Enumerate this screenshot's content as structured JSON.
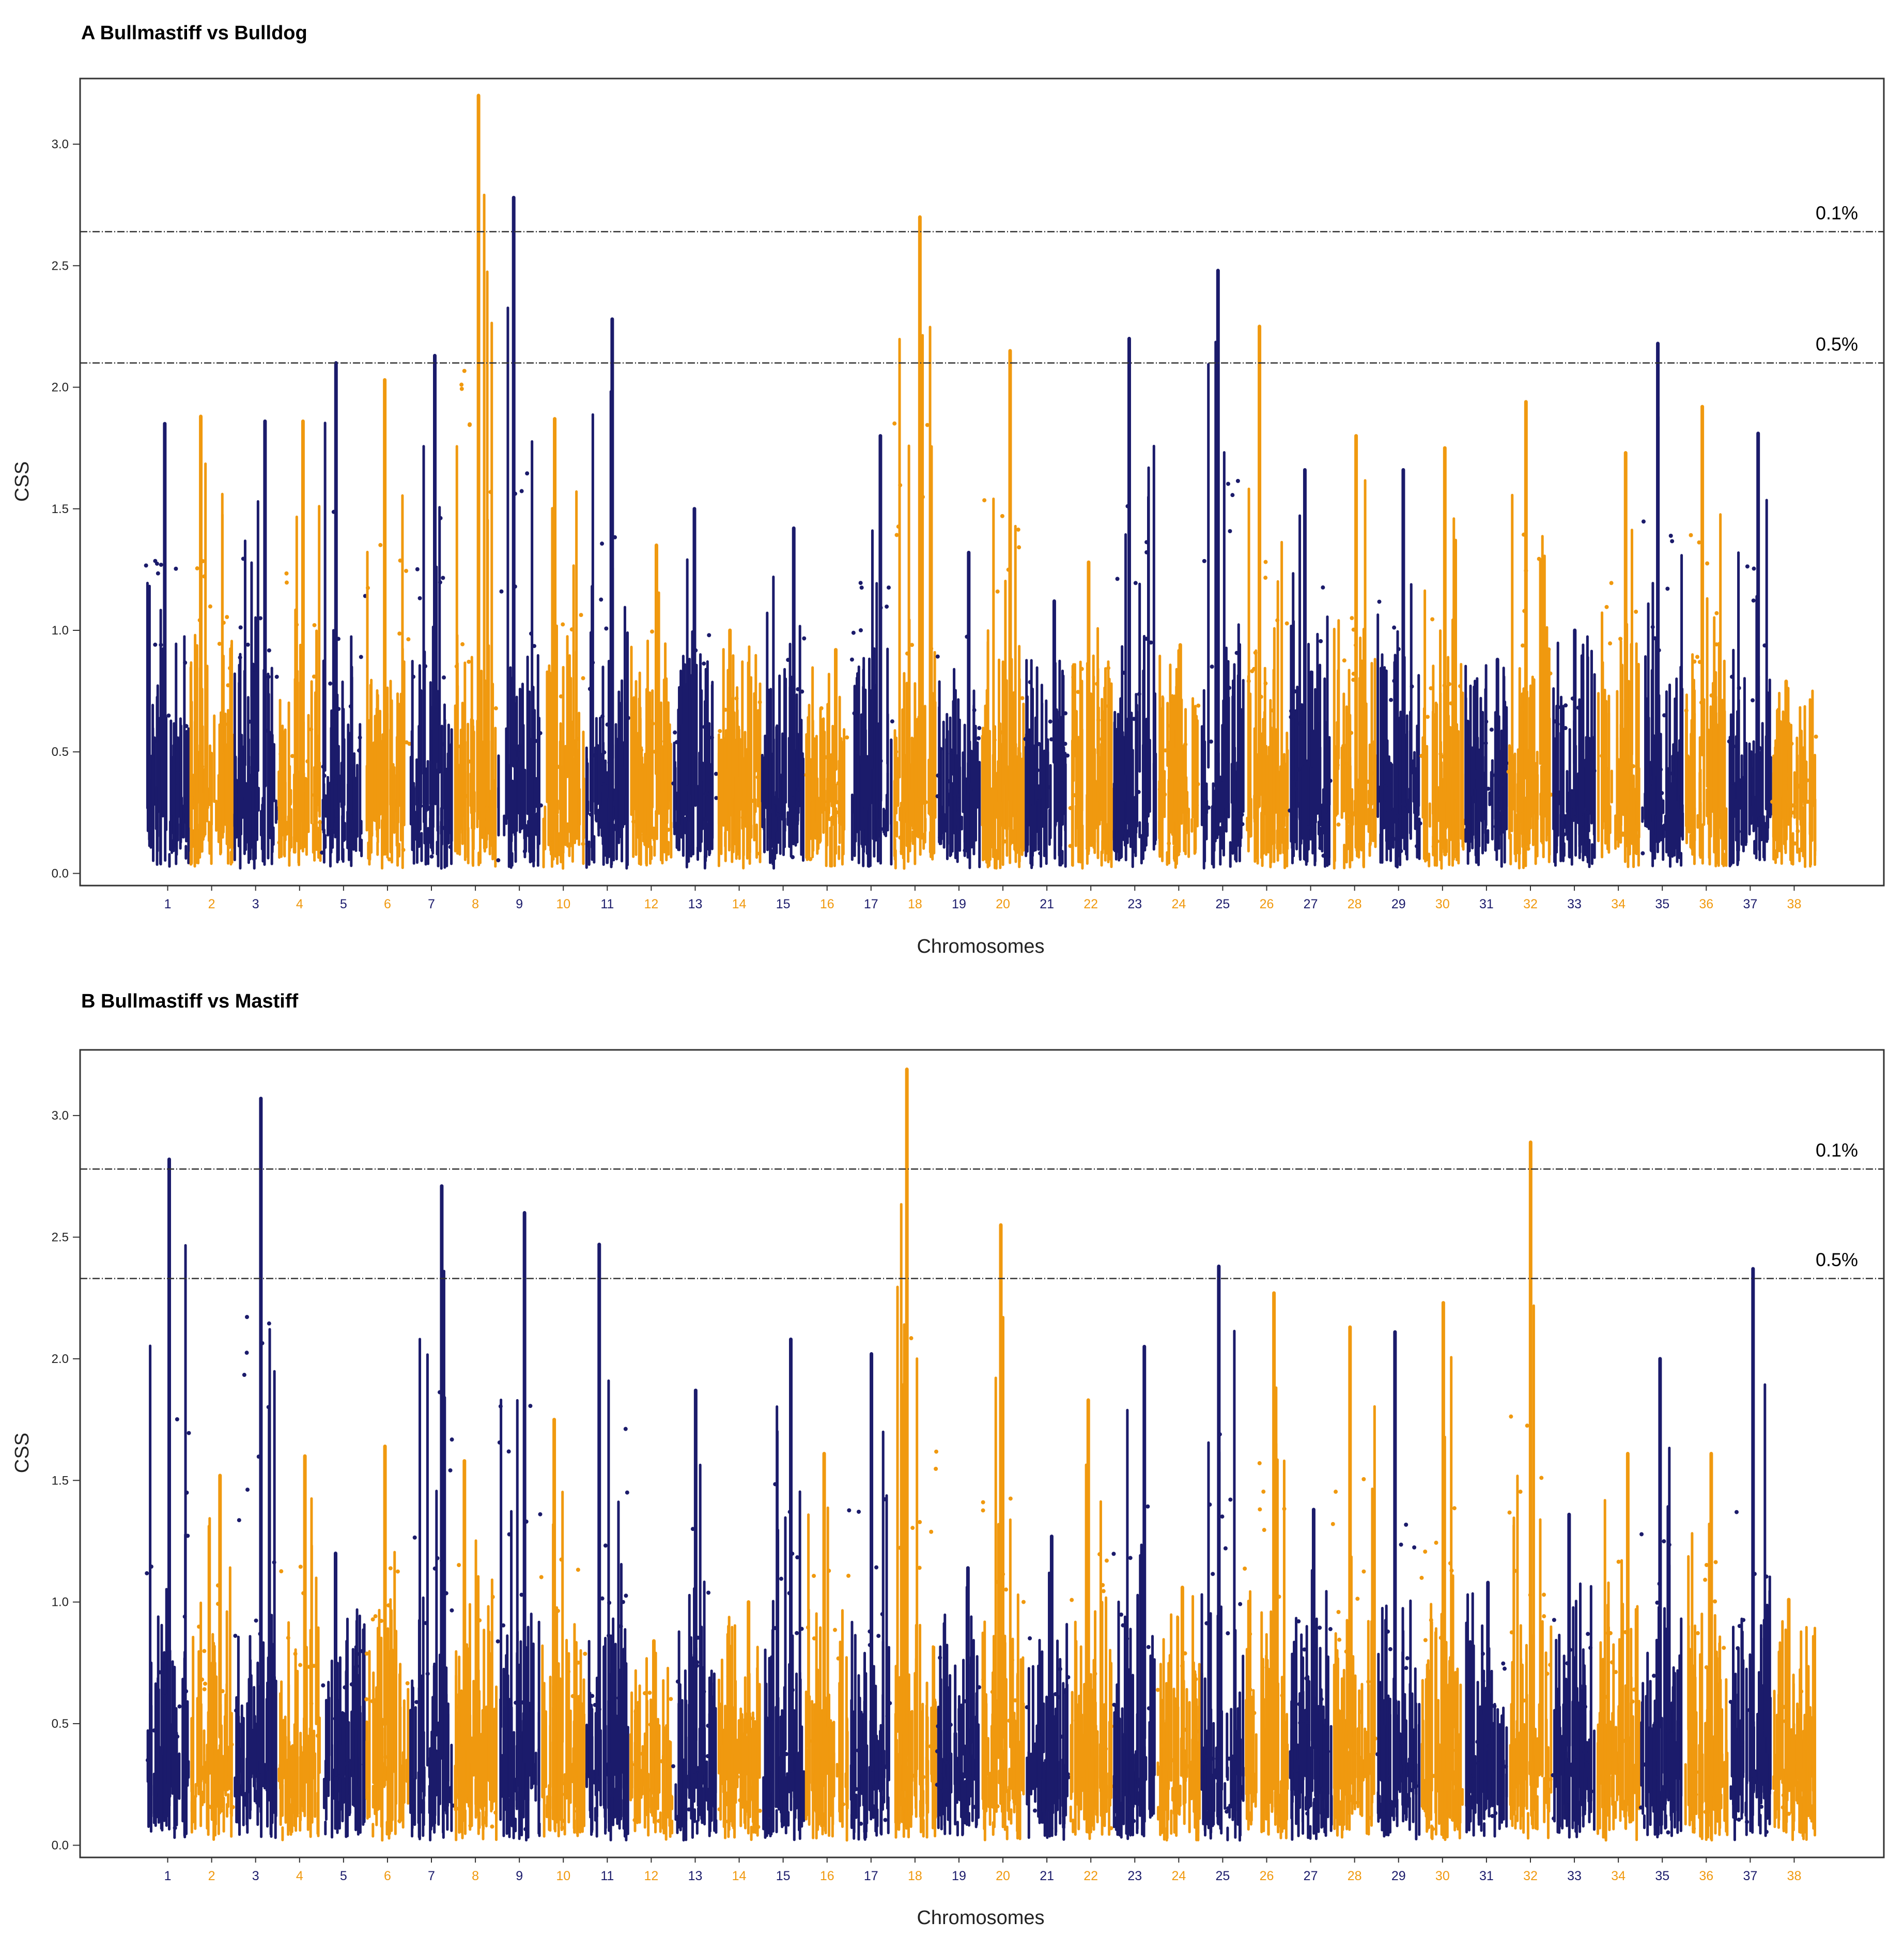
{
  "colors": {
    "navy": "#1b1b6b",
    "orange": "#f0990f",
    "frame": "#333333",
    "threshold": "#333333"
  },
  "chart_data": [
    {
      "type": "scatter",
      "subtype": "manhattan",
      "title": "A Bullmastiff vs Bulldog",
      "xlabel": "Chromosomes",
      "ylabel": "CSS",
      "ylim": [
        -0.05,
        3.27
      ],
      "yticks": [
        "0.0",
        "0.5",
        "1.0",
        "1.5",
        "2.0",
        "2.5",
        "3.0"
      ],
      "grid": false,
      "chromosomes": [
        "1",
        "2",
        "3",
        "4",
        "5",
        "6",
        "7",
        "8",
        "9",
        "10",
        "11",
        "12",
        "13",
        "14",
        "15",
        "16",
        "17",
        "18",
        "19",
        "20",
        "21",
        "22",
        "23",
        "24",
        "25",
        "26",
        "27",
        "28",
        "29",
        "30",
        "31",
        "32",
        "33",
        "34",
        "35",
        "36",
        "37",
        "38"
      ],
      "chromosome_colors": [
        "navy",
        "orange",
        "navy",
        "orange",
        "navy",
        "orange",
        "navy",
        "orange",
        "navy",
        "orange",
        "navy",
        "orange",
        "navy",
        "orange",
        "navy",
        "orange",
        "navy",
        "orange",
        "navy",
        "orange",
        "navy",
        "orange",
        "navy",
        "orange",
        "navy",
        "orange",
        "navy",
        "orange",
        "navy",
        "orange",
        "navy",
        "orange",
        "navy",
        "orange",
        "navy",
        "orange",
        "navy",
        "orange"
      ],
      "chromosome_peak_css": [
        1.85,
        1.88,
        1.86,
        1.86,
        2.1,
        2.03,
        2.13,
        3.2,
        2.78,
        1.87,
        2.28,
        1.35,
        1.5,
        1.0,
        1.42,
        0.92,
        1.8,
        2.7,
        1.32,
        2.15,
        1.12,
        1.28,
        2.2,
        0.94,
        2.48,
        2.25,
        1.66,
        1.8,
        1.66,
        1.75,
        0.88,
        1.94,
        1.0,
        1.73,
        2.18,
        1.92,
        1.81,
        0.79
      ],
      "thresholds": [
        {
          "label": "0.1%",
          "value": 2.64
        },
        {
          "label": "0.5%",
          "value": 2.1
        }
      ]
    },
    {
      "type": "scatter",
      "subtype": "manhattan",
      "title": "B Bullmastiff vs Mastiff",
      "xlabel": "Chromosomes",
      "ylabel": "CSS",
      "ylim": [
        -0.05,
        3.27
      ],
      "yticks": [
        "0.0",
        "0.5",
        "1.0",
        "1.5",
        "2.0",
        "2.5",
        "3.0"
      ],
      "grid": false,
      "chromosomes": [
        "1",
        "2",
        "3",
        "4",
        "5",
        "6",
        "7",
        "8",
        "9",
        "10",
        "11",
        "12",
        "13",
        "14",
        "15",
        "16",
        "17",
        "18",
        "19",
        "20",
        "21",
        "22",
        "23",
        "24",
        "25",
        "26",
        "27",
        "28",
        "29",
        "30",
        "31",
        "32",
        "33",
        "34",
        "35",
        "36",
        "37",
        "38"
      ],
      "chromosome_colors": [
        "navy",
        "orange",
        "navy",
        "orange",
        "navy",
        "orange",
        "navy",
        "orange",
        "navy",
        "orange",
        "navy",
        "orange",
        "navy",
        "orange",
        "navy",
        "orange",
        "navy",
        "orange",
        "navy",
        "orange",
        "navy",
        "orange",
        "navy",
        "orange",
        "navy",
        "orange",
        "navy",
        "orange",
        "navy",
        "orange",
        "navy",
        "orange",
        "navy",
        "orange",
        "navy",
        "orange",
        "navy",
        "orange"
      ],
      "chromosome_peak_css": [
        2.82,
        1.52,
        3.07,
        1.6,
        1.2,
        1.64,
        2.71,
        1.58,
        2.6,
        1.75,
        2.47,
        0.84,
        1.87,
        1.0,
        2.08,
        1.61,
        2.02,
        3.19,
        1.14,
        2.55,
        1.27,
        1.83,
        2.05,
        1.06,
        2.38,
        2.27,
        1.38,
        2.13,
        2.11,
        2.23,
        1.08,
        2.89,
        1.36,
        1.61,
        2.0,
        1.61,
        2.37,
        1.01
      ],
      "thresholds": [
        {
          "label": "0.1%",
          "value": 2.78
        },
        {
          "label": "0.5%",
          "value": 2.33
        }
      ]
    }
  ]
}
